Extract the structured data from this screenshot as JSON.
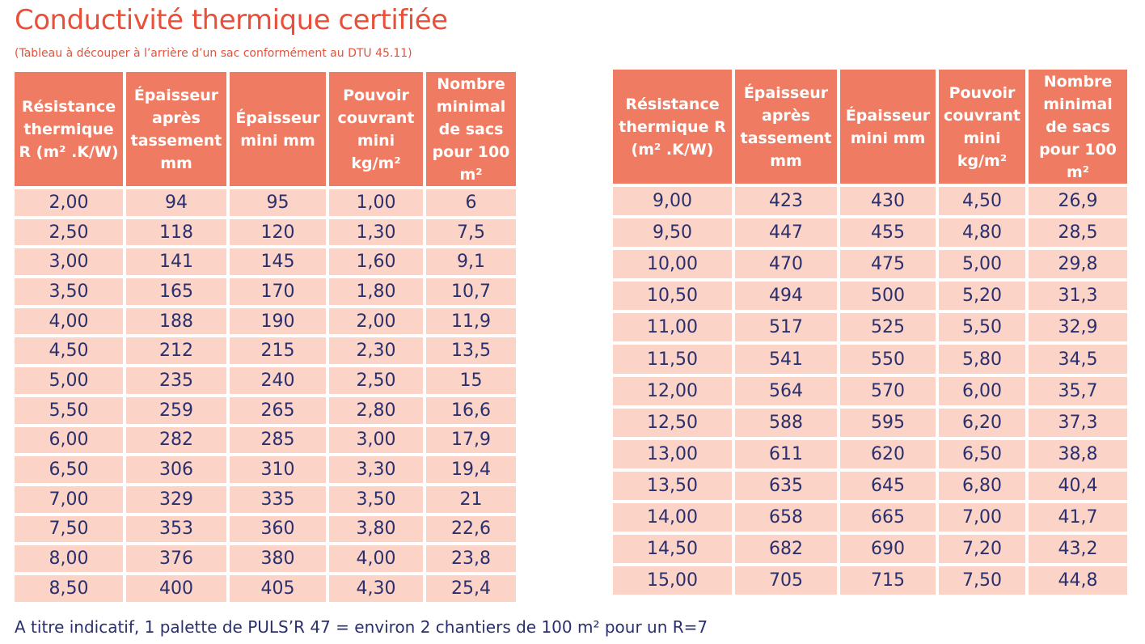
{
  "title": "Conductivité thermique certifiée",
  "subtitle": "(Tableau à découper à l’arrière d’un sac conformément au DTU 45.11)",
  "colors": {
    "title": "#e8503a",
    "header_bg": "#ef7b62",
    "header_text": "#ffffff",
    "cell_bg": "#fbd4c7",
    "cell_text": "#2a2f6e"
  },
  "headers": [
    "Résistance thermique R (m² .K/W)",
    "Épaisseur après tassement mm",
    "Épaisseur mini mm",
    "Pouvoir couvrant mini kg/m²",
    "Nombre minimal de sacs pour 100 m²"
  ],
  "table_left": {
    "rows": [
      [
        "2,00",
        "94",
        "95",
        "1,00",
        "6"
      ],
      [
        "2,50",
        "118",
        "120",
        "1,30",
        "7,5"
      ],
      [
        "3,00",
        "141",
        "145",
        "1,60",
        "9,1"
      ],
      [
        "3,50",
        "165",
        "170",
        "1,80",
        "10,7"
      ],
      [
        "4,00",
        "188",
        "190",
        "2,00",
        "11,9"
      ],
      [
        "4,50",
        "212",
        "215",
        "2,30",
        "13,5"
      ],
      [
        "5,00",
        "235",
        "240",
        "2,50",
        "15"
      ],
      [
        "5,50",
        "259",
        "265",
        "2,80",
        "16,6"
      ],
      [
        "6,00",
        "282",
        "285",
        "3,00",
        "17,9"
      ],
      [
        "6,50",
        "306",
        "310",
        "3,30",
        "19,4"
      ],
      [
        "7,00",
        "329",
        "335",
        "3,50",
        "21"
      ],
      [
        "7,50",
        "353",
        "360",
        "3,80",
        "22,6"
      ],
      [
        "8,00",
        "376",
        "380",
        "4,00",
        "23,8"
      ],
      [
        "8,50",
        "400",
        "405",
        "4,30",
        "25,4"
      ]
    ]
  },
  "table_right": {
    "rows": [
      [
        "9,00",
        "423",
        "430",
        "4,50",
        "26,9"
      ],
      [
        "9,50",
        "447",
        "455",
        "4,80",
        "28,5"
      ],
      [
        "10,00",
        "470",
        "475",
        "5,00",
        "29,8"
      ],
      [
        "10,50",
        "494",
        "500",
        "5,20",
        "31,3"
      ],
      [
        "11,00",
        "517",
        "525",
        "5,50",
        "32,9"
      ],
      [
        "11,50",
        "541",
        "550",
        "5,80",
        "34,5"
      ],
      [
        "12,00",
        "564",
        "570",
        "6,00",
        "35,7"
      ],
      [
        "12,50",
        "588",
        "595",
        "6,20",
        "37,3"
      ],
      [
        "13,00",
        "611",
        "620",
        "6,50",
        "38,8"
      ],
      [
        "13,50",
        "635",
        "645",
        "6,80",
        "40,4"
      ],
      [
        "14,00",
        "658",
        "665",
        "7,00",
        "41,7"
      ],
      [
        "14,50",
        "682",
        "690",
        "7,20",
        "43,2"
      ],
      [
        "15,00",
        "705",
        "715",
        "7,50",
        "44,8"
      ]
    ]
  },
  "footer": "A titre indicatif, 1 palette de PULS’R 47 = environ 2 chantiers de 100 m² pour un R=7"
}
